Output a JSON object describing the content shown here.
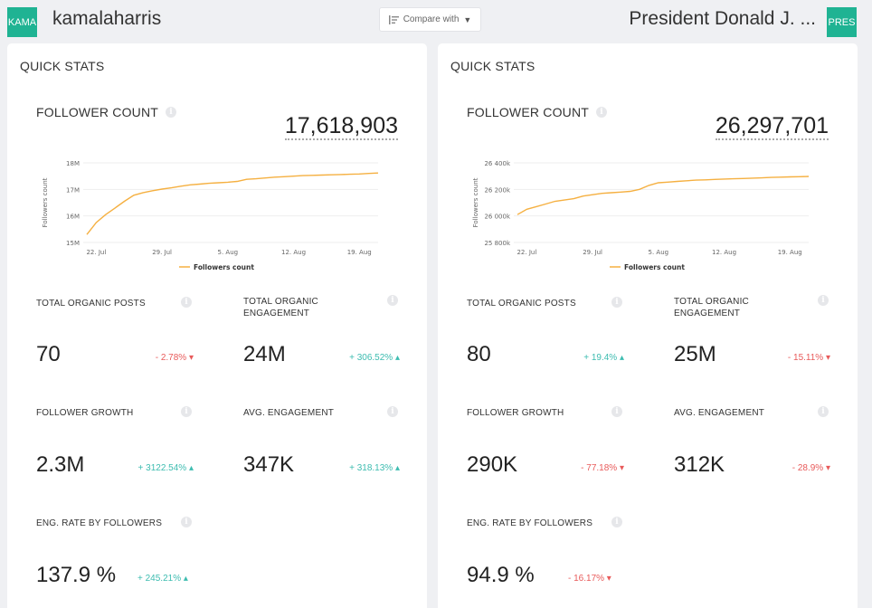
{
  "header": {
    "left": {
      "avatar_text": "KAMA",
      "name": "kamalaharris"
    },
    "compare": {
      "label": "Compare with"
    },
    "right": {
      "avatar_text": "PRES",
      "name": "President Donald J. ..."
    }
  },
  "panels": [
    {
      "title": "QUICK STATS",
      "follower_count_label": "FOLLOWER COUNT",
      "follower_count": "17,618,903",
      "chart_data": {
        "type": "line",
        "ylabel": "Followers count",
        "legend": "Followers count",
        "x_ticks": [
          "22. Jul",
          "29. Jul",
          "5. Aug",
          "12. Aug",
          "19. Aug"
        ],
        "y_ticks": [
          "18M",
          "17M",
          "16M",
          "15M"
        ],
        "ylim": [
          15000000,
          18000000
        ],
        "color": "#f5b041",
        "series": [
          {
            "x": [
              "21. Jul",
              "22. Jul",
              "23. Jul",
              "24. Jul",
              "25. Jul",
              "26. Jul",
              "27. Jul",
              "28. Jul",
              "29. Jul",
              "30. Jul",
              "31. Jul",
              "1. Aug",
              "2. Aug",
              "3. Aug",
              "4. Aug",
              "5. Aug",
              "6. Aug",
              "7. Aug",
              "8. Aug",
              "9. Aug",
              "10. Aug",
              "11. Aug",
              "12. Aug",
              "13. Aug",
              "14. Aug",
              "15. Aug",
              "16. Aug",
              "17. Aug",
              "18. Aug",
              "19. Aug",
              "20. Aug",
              "21. Aug"
            ],
            "values": [
              15300000,
              15750000,
              16050000,
              16300000,
              16550000,
              16780000,
              16880000,
              16950000,
              17010000,
              17060000,
              17120000,
              17170000,
              17200000,
              17230000,
              17250000,
              17270000,
              17300000,
              17380000,
              17400000,
              17430000,
              17460000,
              17480000,
              17500000,
              17520000,
              17530000,
              17540000,
              17550000,
              17560000,
              17570000,
              17580000,
              17600000,
              17618903
            ]
          }
        ]
      },
      "metrics": {
        "total_organic_posts": {
          "label": "TOTAL ORGANIC POSTS",
          "value": "70",
          "change": "- 2.78% ▾"
        },
        "total_organic_engagement": {
          "label_line1": "TOTAL ORGANIC",
          "label_line2": "ENGAGEMENT",
          "value": "24M",
          "change": "+ 306.52% ▴"
        },
        "follower_growth": {
          "label": "FOLLOWER GROWTH",
          "value": "2.3M",
          "change": "+ 3122.54% ▴"
        },
        "avg_engagement": {
          "label": "AVG. ENGAGEMENT",
          "value": "347K",
          "change": "+ 318.13% ▴"
        },
        "eng_rate": {
          "label": "ENG. RATE BY FOLLOWERS",
          "value": "137.9 %",
          "change": "+ 245.21% ▴"
        }
      }
    },
    {
      "title": "QUICK STATS",
      "follower_count_label": "FOLLOWER COUNT",
      "follower_count": "26,297,701",
      "chart_data": {
        "type": "line",
        "ylabel": "Followers count",
        "legend": "Followers count",
        "x_ticks": [
          "22. Jul",
          "29. Jul",
          "5. Aug",
          "12. Aug",
          "19. Aug"
        ],
        "y_ticks": [
          "26 400k",
          "26 200k",
          "26 000k",
          "25 800k"
        ],
        "ylim": [
          25800000,
          26400000
        ],
        "color": "#f5b041",
        "series": [
          {
            "x": [
              "21. Jul",
              "22. Jul",
              "23. Jul",
              "24. Jul",
              "25. Jul",
              "26. Jul",
              "27. Jul",
              "28. Jul",
              "29. Jul",
              "30. Jul",
              "31. Jul",
              "1. Aug",
              "2. Aug",
              "3. Aug",
              "4. Aug",
              "5. Aug",
              "6. Aug",
              "7. Aug",
              "8. Aug",
              "9. Aug",
              "10. Aug",
              "11. Aug",
              "12. Aug",
              "13. Aug",
              "14. Aug",
              "15. Aug",
              "16. Aug",
              "17. Aug",
              "18. Aug",
              "19. Aug",
              "20. Aug",
              "21. Aug"
            ],
            "values": [
              26010000,
              26050000,
              26070000,
              26090000,
              26110000,
              26120000,
              26130000,
              26150000,
              26160000,
              26170000,
              26175000,
              26180000,
              26185000,
              26200000,
              26230000,
              26250000,
              26255000,
              26260000,
              26265000,
              26270000,
              26272000,
              26275000,
              26278000,
              26280000,
              26282000,
              26285000,
              26287000,
              26290000,
              26292000,
              26294000,
              26296000,
              26297701
            ]
          }
        ]
      },
      "metrics": {
        "total_organic_posts": {
          "label": "TOTAL ORGANIC POSTS",
          "value": "80",
          "change": "+ 19.4% ▴"
        },
        "total_organic_engagement": {
          "label_line1": "TOTAL ORGANIC",
          "label_line2": "ENGAGEMENT",
          "value": "25M",
          "change": "- 15.11% ▾"
        },
        "follower_growth": {
          "label": "FOLLOWER GROWTH",
          "value": "290K",
          "change": "- 77.18% ▾"
        },
        "avg_engagement": {
          "label": "AVG. ENGAGEMENT",
          "value": "312K",
          "change": "- 28.9% ▾"
        },
        "eng_rate": {
          "label": "ENG. RATE BY FOLLOWERS",
          "value": "94.9 %",
          "change": "- 16.17% ▾"
        }
      }
    }
  ]
}
